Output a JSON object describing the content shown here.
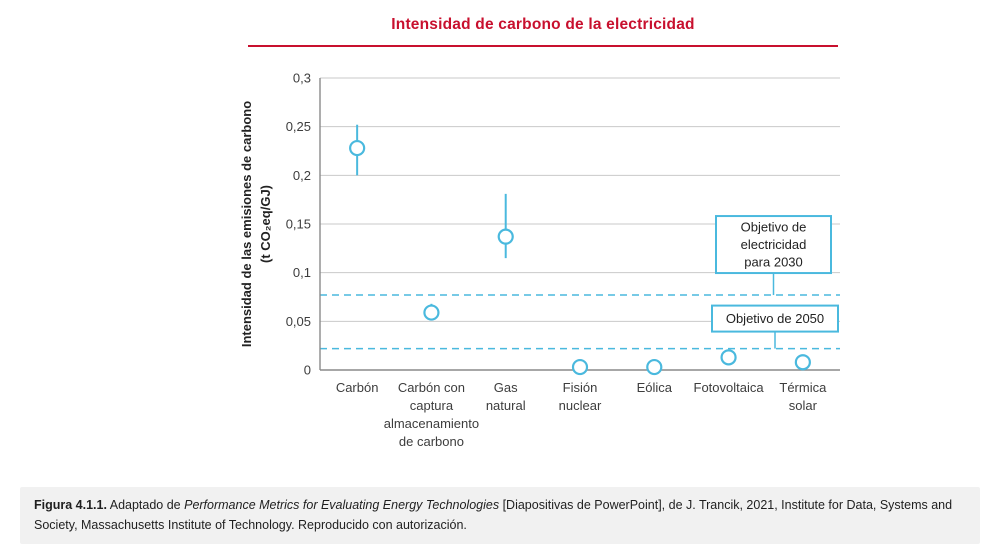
{
  "colors": {
    "red": "#c8102e",
    "blue": "#4ab9de",
    "grid": "#c9c9c9",
    "axis": "#8a8a8a"
  },
  "chart_data": {
    "type": "scatter",
    "title": "Intensidad de carbono de la electricidad",
    "ylabel_lines": [
      "Intensidad de las emisiones de carbono",
      "(t CO₂eq/GJ)"
    ],
    "ylim": [
      0,
      0.3
    ],
    "yticks": [
      "0",
      "0,05",
      "0,1",
      "0,15",
      "0,2",
      "0,25",
      "0,3"
    ],
    "categories": [
      [
        "Carbón"
      ],
      [
        "Carbón con",
        "captura",
        "almacenamiento",
        "de carbono"
      ],
      [
        "Gas",
        "natural"
      ],
      [
        "Fisión",
        "nuclear"
      ],
      [
        "Eólica"
      ],
      [
        "Fotovoltaica"
      ],
      [
        "Térmica",
        "solar"
      ]
    ],
    "values": [
      0.228,
      0.059,
      0.137,
      0.003,
      0.003,
      0.013,
      0.008
    ],
    "error_low": [
      0.2,
      0.051,
      0.115,
      null,
      null,
      null,
      null
    ],
    "error_high": [
      0.252,
      0.068,
      0.181,
      null,
      null,
      null,
      null
    ],
    "targets": [
      {
        "label_lines": [
          "Objetivo de",
          "electricidad",
          "para 2030"
        ],
        "value": 0.077
      },
      {
        "label_lines": [
          "Objetivo de 2050"
        ],
        "value": 0.022
      }
    ],
    "grid": true,
    "legend": false
  },
  "caption": {
    "figure_label": "Figura 4.1.1.",
    "text_before_title": " Adaptado de ",
    "work_title": "Performance Metrics for Evaluating Energy Technologies",
    "text_after_title": " [Diapositivas de PowerPoint], de J. Trancik, 2021, Institute for Data, Systems and Society, Massachusetts Institute of Technology. Reproducido con autorización."
  }
}
